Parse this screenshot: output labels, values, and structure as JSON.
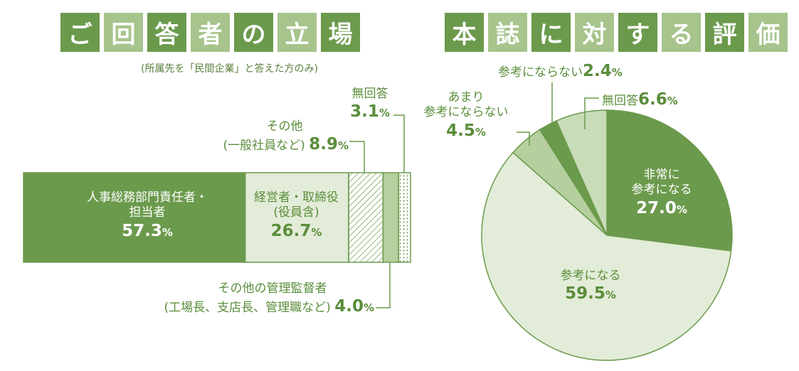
{
  "left": {
    "title_chars": [
      "ご",
      "回",
      "答",
      "者",
      "の",
      "立",
      "場"
    ],
    "note": "(所属先を「民間企業」と答えた方のみ)",
    "segments": [
      {
        "label": "人事総務部門責任者・",
        "label2": "担当者",
        "value": "57.3",
        "unit": "%"
      },
      {
        "label": "経営者・取締役",
        "label2": "(役員含)",
        "value": "26.7",
        "unit": "%"
      },
      {
        "label": "その他",
        "label2": "(一般社員など)",
        "value": "8.9",
        "unit": "%"
      },
      {
        "label": "その他の管理監督者",
        "label2": "(工場長、支店長、管理職など)",
        "value": "4.0",
        "unit": "%"
      },
      {
        "label": "無回答",
        "label2": "",
        "value": "3.1",
        "unit": "%"
      }
    ]
  },
  "right": {
    "title_chars": [
      "本",
      "誌",
      "に",
      "対",
      "す",
      "る",
      "評",
      "価"
    ],
    "slices": [
      {
        "label": "非常に",
        "label2": "参考になる",
        "value": "27.0",
        "unit": "%"
      },
      {
        "label": "参考になる",
        "label2": "",
        "value": "59.5",
        "unit": "%"
      },
      {
        "label": "あまり",
        "label2": "参考にならない",
        "value": "4.5",
        "unit": "%"
      },
      {
        "label": "参考にならない",
        "label2": "",
        "value": "2.4",
        "unit": "%"
      },
      {
        "label": "無回答",
        "label2": "",
        "value": "6.6",
        "unit": "%"
      }
    ]
  },
  "chart_data": [
    {
      "type": "bar",
      "stacked": true,
      "title": "ご回答者の立場",
      "subtitle": "(所属先を「民間企業」と答えた方のみ)",
      "categories": [
        "人事総務部門責任者・担当者",
        "経営者・取締役(役員含)",
        "その他(一般社員など)",
        "その他の管理監督者(工場長、支店長、管理職など)",
        "無回答"
      ],
      "values": [
        57.3,
        26.7,
        8.9,
        4.0,
        3.1
      ],
      "colors": [
        "#6b9a4c",
        "#e3ecd8",
        "#ffffff",
        "#b6cf9e",
        "#ffffff"
      ],
      "unit": "%"
    },
    {
      "type": "pie",
      "title": "本誌に対する評価",
      "categories": [
        "非常に参考になる",
        "参考になる",
        "あまり参考にならない",
        "参考にならない",
        "無回答"
      ],
      "values": [
        27.0,
        59.5,
        4.5,
        2.4,
        6.6
      ],
      "colors": [
        "#6b9a4c",
        "#e3ecd8",
        "#b6cf9e",
        "#6b9a4c",
        "#c9dcb8"
      ],
      "unit": "%"
    }
  ]
}
